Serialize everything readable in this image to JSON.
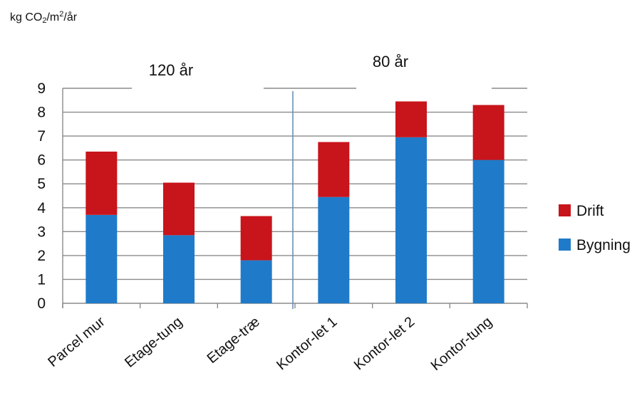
{
  "chart_data": {
    "type": "bar",
    "stacked": true,
    "ylabel_parts": {
      "pre": "kg CO",
      "sub": "2",
      "mid": "/m",
      "sup": "2",
      "post": "/år"
    },
    "categories": [
      "Parcel mur",
      "Etage-tung",
      "Etage-træ",
      "Kontor-let 1",
      "Kontor-let 2",
      "Kontor-tung"
    ],
    "series": [
      {
        "name": "Bygning",
        "color": "#1F7BC9",
        "values": [
          3.7,
          2.85,
          1.8,
          4.45,
          6.95,
          6.0
        ]
      },
      {
        "name": "Drift",
        "color": "#C8141B",
        "values": [
          2.65,
          2.2,
          1.85,
          2.3,
          1.5,
          2.3
        ]
      }
    ],
    "ylim": [
      0,
      9
    ],
    "yticks": [
      0,
      1,
      2,
      3,
      4,
      5,
      6,
      7,
      8,
      9
    ],
    "grid": true,
    "legend": "right",
    "group_labels": [
      {
        "label": "120 år",
        "categories": [
          "Parcel mur",
          "Etage-tung",
          "Etage-træ"
        ]
      },
      {
        "label": "80 år",
        "categories": [
          "Kontor-let 1",
          "Kontor-let 2",
          "Kontor-tung"
        ]
      }
    ]
  }
}
